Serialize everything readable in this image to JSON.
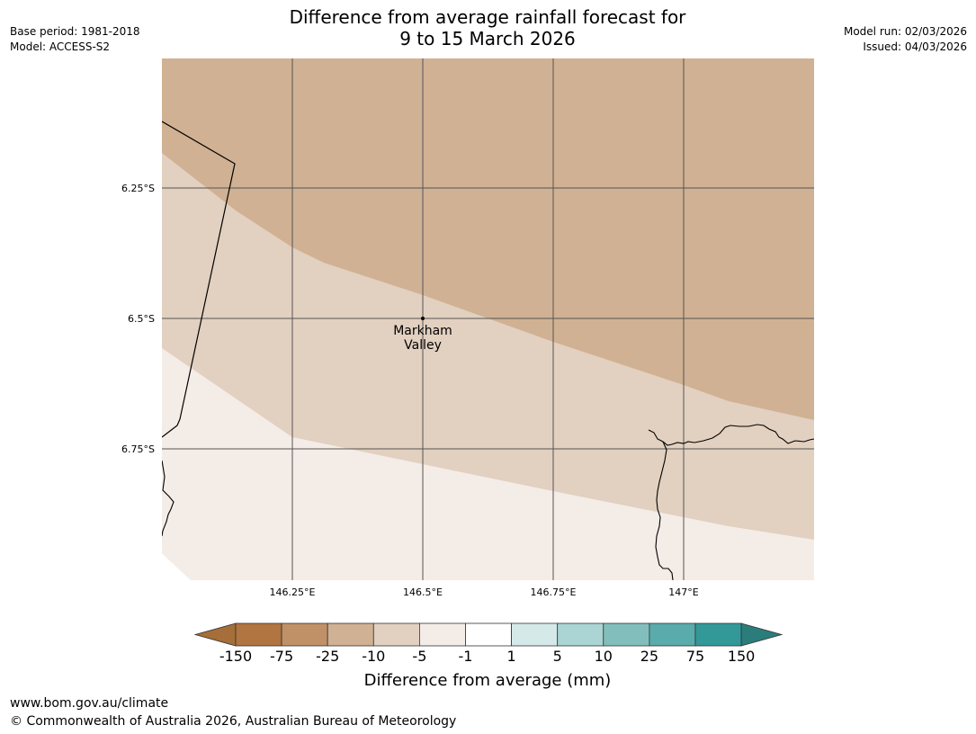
{
  "header": {
    "title_line1": "Difference from average rainfall forecast for",
    "title_line2": "9 to 15 March 2026",
    "base_period": "Base period: 1981-2018",
    "model": "Model: ACCESS-S2",
    "model_run": "Model run: 02/03/2026",
    "issued": "Issued: 04/03/2026"
  },
  "map": {
    "lat_labels": [
      "6.25°S",
      "6.5°S",
      "6.75°S"
    ],
    "lon_labels": [
      "146.25°E",
      "146.5°E",
      "146.75°E",
      "147°E"
    ],
    "place": {
      "name_line1": "Markham",
      "name_line2": "Valley"
    },
    "colors": {
      "band_-25_-10": "#d0b193",
      "band_-10_-5": "#e2d0c0",
      "band_-5_-1": "#f4ece7"
    }
  },
  "colorbar": {
    "ticks": [
      "-150",
      "-75",
      "-25",
      "-10",
      "-5",
      "-1",
      "1",
      "5",
      "10",
      "25",
      "75",
      "150"
    ],
    "colors": [
      "#a66e38",
      "#b07540",
      "#c09167",
      "#d0b193",
      "#e2d0c0",
      "#f4ece7",
      "#ffffff",
      "#d5e9e9",
      "#abd4d4",
      "#82bfbc",
      "#5aabab",
      "#339998",
      "#2b7d7b"
    ],
    "title": "Difference from average (mm)"
  },
  "footer": {
    "url": "www.bom.gov.au/climate",
    "copyright": "© Commonwealth of Australia 2026, Australian Bureau of Meteorology"
  }
}
